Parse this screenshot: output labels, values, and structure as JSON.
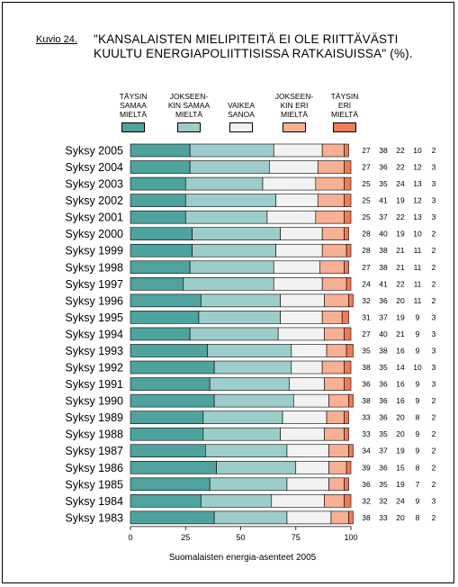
{
  "caption": "Kuvio 24.",
  "title_line1": "\"KANSALAISTEN MIELIPITEITÄ EI OLE RIITTÄVÄSTI",
  "title_line2": "KUULTU ENERGIAPOLIITTISISSA RATKAISUISSA\" (%).",
  "legend": [
    {
      "lines": [
        "TÄYSIN",
        "SAMAA",
        "MIELTÄ"
      ],
      "color": "#4fa39e"
    },
    {
      "lines": [
        "JOKSEEN-",
        "KIN SAMAA",
        "MIELTÄ"
      ],
      "color": "#9dcdca"
    },
    {
      "lines": [
        "VAIKEA",
        "SANOA"
      ],
      "color": "#f2f2f2"
    },
    {
      "lines": [
        "JOKSEEN-",
        "KIN ERI",
        "MIELTÄ"
      ],
      "color": "#f7b093"
    },
    {
      "lines": [
        "TÄYSIN",
        "ERI",
        "MIELTÄ"
      ],
      "color": "#f27a58"
    }
  ],
  "chart_data": {
    "type": "bar",
    "orientation": "horizontal",
    "stacked": true,
    "categories": [
      "Syksy 2005",
      "Syksy 2004",
      "Syksy 2003",
      "Syksy 2002",
      "Syksy 2001",
      "Syksy 2000",
      "Syksy 1999",
      "Syksy 1998",
      "Syksy 1997",
      "Syksy 1996",
      "Syksy 1995",
      "Syksy 1994",
      "Syksy 1993",
      "Syksy 1992",
      "Syksy 1991",
      "Syksy 1990",
      "Syksy 1989",
      "Syksy 1988",
      "Syksy 1987",
      "Syksy 1986",
      "Syksy 1985",
      "Syksy 1984",
      "Syksy 1983"
    ],
    "series": [
      {
        "name": "TÄYSIN SAMAA MIELTÄ",
        "values": [
          27,
          27,
          25,
          25,
          25,
          28,
          28,
          27,
          24,
          32,
          31,
          27,
          35,
          38,
          36,
          38,
          33,
          33,
          34,
          39,
          36,
          32,
          38
        ]
      },
      {
        "name": "JOKSEENKIN SAMAA MIELTÄ",
        "values": [
          38,
          36,
          35,
          41,
          37,
          40,
          38,
          38,
          41,
          36,
          37,
          40,
          38,
          35,
          36,
          36,
          36,
          35,
          37,
          36,
          35,
          32,
          33
        ]
      },
      {
        "name": "VAIKEA SANOA",
        "values": [
          22,
          22,
          24,
          19,
          22,
          19,
          21,
          21,
          22,
          20,
          19,
          21,
          16,
          14,
          16,
          16,
          20,
          20,
          19,
          15,
          19,
          24,
          20
        ]
      },
      {
        "name": "JOKSEENKIN ERI MIELTÄ",
        "values": [
          10,
          12,
          13,
          12,
          13,
          10,
          11,
          11,
          11,
          11,
          9,
          9,
          9,
          10,
          9,
          9,
          8,
          9,
          9,
          8,
          7,
          9,
          8
        ]
      },
      {
        "name": "TÄYSIN ERI MIELTÄ",
        "values": [
          2,
          3,
          3,
          3,
          3,
          2,
          2,
          2,
          2,
          2,
          3,
          3,
          3,
          3,
          3,
          2,
          2,
          2,
          2,
          2,
          2,
          3,
          2
        ]
      }
    ],
    "xticks": [
      "0",
      "25",
      "50",
      "75",
      "100"
    ],
    "xlim": [
      0,
      100
    ],
    "xlabel": "Suomalaisten energia-asenteet 2005"
  }
}
